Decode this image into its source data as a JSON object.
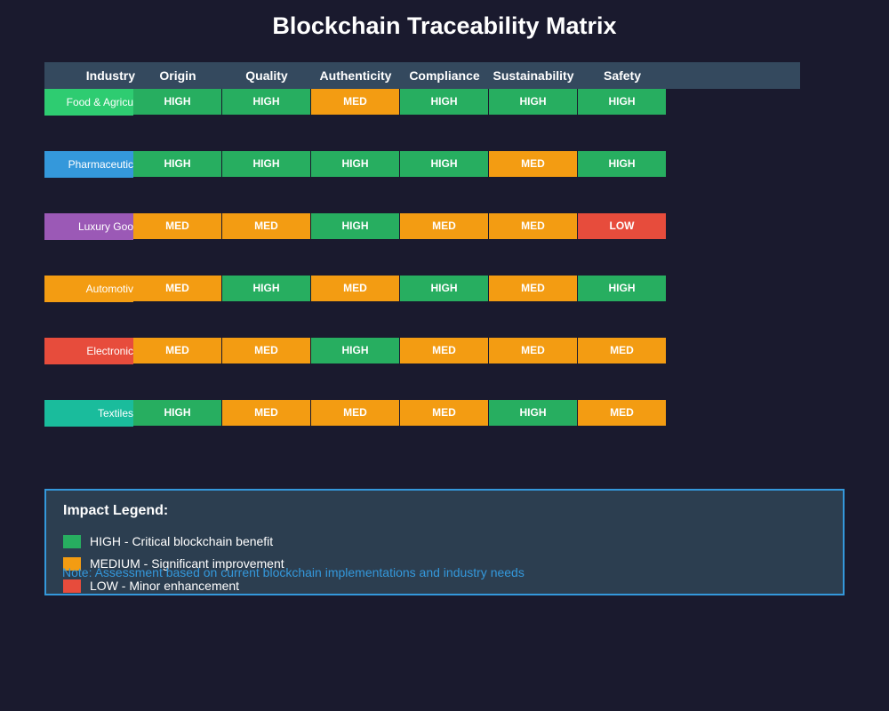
{
  "title": "Blockchain Traceability Matrix",
  "chart_data": {
    "type": "table",
    "title": "Blockchain Traceability Matrix",
    "row_header": "Industry",
    "columns": [
      "Origin",
      "Quality",
      "Authenticity",
      "Compliance",
      "Sustainability",
      "Safety"
    ],
    "rows": [
      {
        "industry": "Food & Agricu",
        "color": "#2ecc71",
        "values": [
          "HIGH",
          "HIGH",
          "MED",
          "HIGH",
          "HIGH",
          "HIGH"
        ]
      },
      {
        "industry": "Pharmaceutic",
        "color": "#3498db",
        "values": [
          "HIGH",
          "HIGH",
          "HIGH",
          "HIGH",
          "MED",
          "HIGH"
        ]
      },
      {
        "industry": "Luxury Goo",
        "color": "#9b59b6",
        "values": [
          "MED",
          "MED",
          "HIGH",
          "MED",
          "MED",
          "LOW"
        ]
      },
      {
        "industry": "Automotiv",
        "color": "#f39c12",
        "values": [
          "MED",
          "HIGH",
          "MED",
          "HIGH",
          "MED",
          "HIGH"
        ]
      },
      {
        "industry": "Electronic",
        "color": "#e74c3c",
        "values": [
          "MED",
          "MED",
          "HIGH",
          "MED",
          "MED",
          "MED"
        ]
      },
      {
        "industry": "Textiles",
        "color": "#1abc9c",
        "values": [
          "HIGH",
          "MED",
          "MED",
          "MED",
          "HIGH",
          "MED"
        ]
      }
    ],
    "level_colors": {
      "HIGH": "#27ae60",
      "MED": "#f39c12",
      "LOW": "#e74c3c"
    }
  },
  "legend": {
    "title": "Impact Legend:",
    "items": [
      {
        "label": "HIGH - Critical blockchain benefit",
        "color": "#27ae60"
      },
      {
        "label": "MEDIUM - Significant improvement",
        "color": "#f39c12"
      },
      {
        "label": "LOW - Minor enhancement",
        "color": "#e74c3c"
      }
    ]
  },
  "note": "Note: Assessment based on current blockchain implementations and industry needs"
}
